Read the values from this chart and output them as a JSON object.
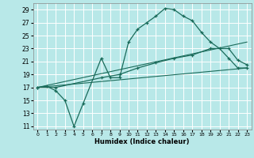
{
  "xlabel": "Humidex (Indice chaleur)",
  "bg_color": "#b8e8e8",
  "grid_color": "#ffffff",
  "line_color": "#1a6b5a",
  "xlim": [
    -0.5,
    23.5
  ],
  "ylim": [
    10.5,
    30
  ],
  "xticks": [
    0,
    1,
    2,
    3,
    4,
    5,
    6,
    7,
    8,
    9,
    10,
    11,
    12,
    13,
    14,
    15,
    16,
    17,
    18,
    19,
    20,
    21,
    22,
    23
  ],
  "yticks": [
    11,
    13,
    15,
    17,
    19,
    21,
    23,
    25,
    27,
    29
  ],
  "lines": [
    {
      "x": [
        0,
        1,
        2,
        3,
        4,
        5,
        7,
        8,
        9,
        10,
        11,
        12,
        13,
        14,
        15,
        16,
        17,
        18,
        19,
        20,
        21,
        22,
        23
      ],
      "y": [
        17,
        17.2,
        16.5,
        15,
        11,
        14.5,
        21.5,
        18.5,
        18.5,
        24,
        26,
        27,
        28,
        29.2,
        29,
        28,
        27.3,
        25.5,
        24,
        23,
        21.5,
        20,
        20
      ],
      "marker": true
    },
    {
      "x": [
        0,
        2,
        7,
        9,
        11,
        13,
        15,
        17,
        19,
        21,
        22,
        23
      ],
      "y": [
        17,
        17,
        18.5,
        19,
        20,
        20.8,
        21.5,
        22,
        23,
        23,
        21.2,
        20.5
      ],
      "marker": true
    },
    {
      "x": [
        0,
        23
      ],
      "y": [
        17,
        24
      ],
      "marker": false
    },
    {
      "x": [
        0,
        23
      ],
      "y": [
        17,
        20
      ],
      "marker": false
    }
  ]
}
